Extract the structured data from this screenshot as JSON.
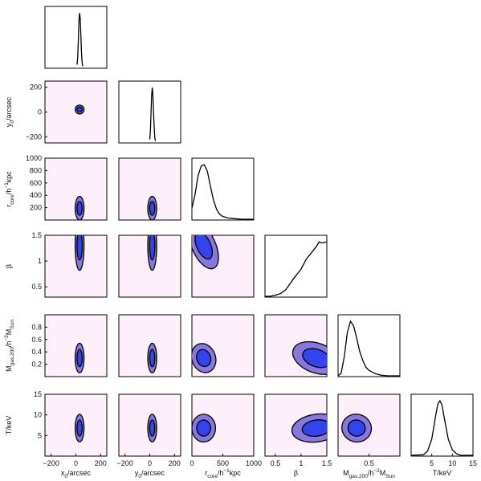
{
  "chart_data": {
    "type": "corner",
    "parameters": [
      {
        "id": "x0",
        "tick_values": [
          -200,
          0,
          200
        ],
        "tick_labels": [
          "−200",
          "0",
          "200"
        ],
        "range": [
          -250,
          250
        ],
        "mean": 30,
        "sd": 15,
        "xlabel": {
          "base": "x",
          "sub": "0",
          "tail": "/arcsec"
        }
      },
      {
        "id": "y0",
        "tick_values": [
          -200,
          0,
          200
        ],
        "tick_labels": [
          "−200",
          "0",
          "200"
        ],
        "range": [
          -250,
          250
        ],
        "mean": 20,
        "sd": 15,
        "xlabel": {
          "base": "y",
          "sub": "0",
          "tail": "/arcsec"
        },
        "ylabel": {
          "base": "y",
          "sub": "0",
          "tail": "/arcsec"
        }
      },
      {
        "id": "rcore",
        "tick_values": [
          0,
          500,
          1000
        ],
        "tick_labels": [
          "0",
          "500",
          "1000"
        ],
        "range": [
          0,
          1000
        ],
        "mean": 190,
        "sd": 80,
        "xlabel_html": "r<tspan font-size='6.5' dy='3'>core</tspan><tspan dy='-3'>/h</tspan><tspan font-size='6.5' dy='-4'>−1</tspan><tspan dy='4'>kpc</tspan>",
        "ytick_values": [
          200,
          400,
          600,
          800,
          1000
        ],
        "ytick_labels": [
          "200",
          "400",
          "600",
          "800",
          "1000"
        ],
        "ylabel_html": "r<tspan font-size='6.5' dy='3'>core</tspan><tspan dy='-3'>/h</tspan><tspan font-size='6.5' dy='-4'>−1</tspan><tspan dy='4'>kpc</tspan>"
      },
      {
        "id": "beta",
        "tick_values": [
          0.5,
          1,
          1.5
        ],
        "tick_labels": [
          "0.5",
          "1",
          "1.5"
        ],
        "range": [
          0.3,
          1.5
        ],
        "mean": 1.3,
        "sd": 0.2,
        "xlabel_html": "β",
        "ytick_values": [
          0.5,
          1,
          1.5
        ],
        "ytick_labels": [
          "0.5",
          "1",
          "1.5"
        ],
        "ylabel_html": "β"
      },
      {
        "id": "mgas",
        "tick_values": [
          0.5
        ],
        "tick_labels": [
          "0.5"
        ],
        "range": [
          0,
          1
        ],
        "mean": 0.3,
        "sd": 0.1,
        "xlabel_html": "M<tspan font-size='6.5' dy='3'>gas,200</tspan><tspan dy='-3'>/h</tspan><tspan font-size='6.5' dy='-4'>−2</tspan><tspan dy='4'>M</tspan><tspan font-size='6.5' dy='3'>Sun</tspan>",
        "ytick_values": [
          0.2,
          0.4,
          0.6,
          0.8
        ],
        "ytick_labels": [
          "0.2",
          "0.4",
          "0.6",
          "0.8"
        ],
        "ylabel_html": "M<tspan font-size='6.5' dy='3'>gas,200</tspan><tspan dy='-3'>/h</tspan><tspan font-size='6.5' dy='-4'>−2</tspan><tspan dy='4'>M</tspan><tspan font-size='6.5' dy='3'>Sun</tspan>"
      },
      {
        "id": "T",
        "tick_values": [
          5,
          10,
          15
        ],
        "tick_labels": [
          "5",
          "10",
          "15"
        ],
        "range": [
          0,
          15
        ],
        "mean": 6.8,
        "sd": 1.4,
        "xlabel_html": "T/keV",
        "ytick_values": [
          5,
          10,
          15
        ],
        "ytick_labels": [
          "5",
          "10",
          "15"
        ],
        "ylabel_html": "T/keV"
      }
    ],
    "marginal_curves": [
      {
        "param": "x0",
        "x": [
          10,
          15,
          20,
          25,
          30,
          35,
          40,
          45,
          50,
          55
        ],
        "y": [
          0.05,
          0.2,
          0.5,
          0.85,
          1,
          0.9,
          0.6,
          0.3,
          0.1,
          0.02
        ]
      },
      {
        "param": "y0",
        "x": [
          0,
          5,
          10,
          15,
          20,
          25,
          30,
          35,
          40,
          45
        ],
        "y": [
          0.05,
          0.2,
          0.5,
          0.85,
          1,
          0.9,
          0.6,
          0.3,
          0.1,
          0.02
        ]
      },
      {
        "param": "rcore",
        "x": [
          0,
          50,
          100,
          150,
          200,
          250,
          300,
          350,
          400,
          450,
          500,
          600,
          700,
          800,
          1000
        ],
        "y": [
          0.2,
          0.45,
          0.8,
          0.98,
          1,
          0.88,
          0.6,
          0.35,
          0.18,
          0.09,
          0.05,
          0.02,
          0.01,
          0,
          0
        ]
      },
      {
        "param": "beta",
        "x": [
          0.3,
          0.4,
          0.5,
          0.6,
          0.7,
          0.8,
          0.85,
          0.9,
          1.0,
          1.1,
          1.2,
          1.3,
          1.35,
          1.4,
          1.5
        ],
        "y": [
          0,
          0,
          0.02,
          0.05,
          0.12,
          0.25,
          0.32,
          0.38,
          0.5,
          0.68,
          0.8,
          0.92,
          1,
          0.98,
          1
        ]
      },
      {
        "param": "mgas",
        "x": [
          0,
          0.05,
          0.1,
          0.15,
          0.2,
          0.25,
          0.3,
          0.35,
          0.4,
          0.45,
          0.5,
          0.6,
          0.7,
          0.8,
          1.0
        ],
        "y": [
          0,
          0.05,
          0.35,
          0.8,
          1,
          0.92,
          0.7,
          0.45,
          0.28,
          0.16,
          0.1,
          0.04,
          0.01,
          0,
          0
        ]
      },
      {
        "param": "T",
        "x": [
          0,
          3,
          4,
          5,
          6,
          6.5,
          7,
          7.5,
          8,
          9,
          10,
          11,
          12,
          15
        ],
        "y": [
          0,
          0.01,
          0.08,
          0.3,
          0.75,
          0.95,
          1,
          0.92,
          0.7,
          0.3,
          0.1,
          0.03,
          0,
          0
        ]
      }
    ],
    "pair_correlations": [
      {
        "x": "rcore",
        "y": "beta",
        "rho": 0.6
      },
      {
        "x": "beta",
        "y": "mgas",
        "rho": -0.5
      },
      {
        "x": "beta",
        "y": "T",
        "rho": 0.2
      },
      {
        "x": "rcore",
        "y": "mgas",
        "rho": 0.5
      },
      {
        "x": "mgas",
        "y": "T",
        "rho": -0.35
      }
    ],
    "colors": {
      "contour_fill_inner": "#3344ee",
      "contour_fill_mid": "#8877dd",
      "background_tint": "#fdf0fa",
      "line": "#000000"
    },
    "grid": false
  }
}
